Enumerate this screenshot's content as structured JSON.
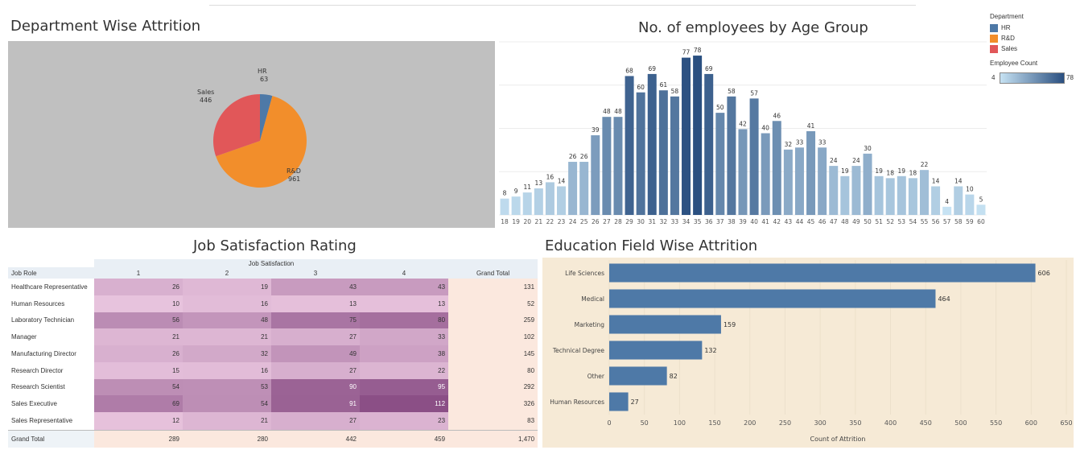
{
  "titles": {
    "pie": "Department Wise Attrition",
    "age": "No. of employees by Age Group",
    "job": "Job Satisfaction Rating",
    "edu": "Education Field Wise Attrition"
  },
  "legend": {
    "department_title": "Department",
    "departments": [
      {
        "name": "HR",
        "color": "#4e79a7"
      },
      {
        "name": "R&D",
        "color": "#f28e2b"
      },
      {
        "name": "Sales",
        "color": "#e15759"
      }
    ],
    "count_title": "Employee Count",
    "count_min": "4",
    "count_max": "78"
  },
  "chart_data": [
    {
      "type": "pie",
      "title": "Department Wise Attrition",
      "slices": [
        {
          "label": "HR",
          "value": 63,
          "color": "#4e79a7"
        },
        {
          "label": "R&D",
          "value": 961,
          "color": "#f28e2b"
        },
        {
          "label": "Sales",
          "value": 446,
          "color": "#e15759"
        }
      ]
    },
    {
      "type": "bar",
      "title": "No. of employees by Age Group",
      "categories": [
        "18",
        "19",
        "20",
        "21",
        "22",
        "23",
        "24",
        "25",
        "26",
        "27",
        "28",
        "29",
        "30",
        "31",
        "32",
        "33",
        "34",
        "35",
        "36",
        "37",
        "38",
        "39",
        "40",
        "41",
        "42",
        "43",
        "44",
        "45",
        "46",
        "47",
        "48",
        "49",
        "50",
        "51",
        "52",
        "53",
        "54",
        "55",
        "56",
        "57",
        "58",
        "59",
        "60"
      ],
      "values": [
        8,
        9,
        11,
        13,
        16,
        14,
        26,
        26,
        39,
        48,
        48,
        68,
        60,
        69,
        61,
        58,
        77,
        78,
        69,
        50,
        58,
        42,
        57,
        40,
        46,
        32,
        33,
        41,
        33,
        24,
        19,
        24,
        30,
        19,
        18,
        19,
        18,
        22,
        14,
        4,
        14,
        10,
        5
      ],
      "ylim": [
        0,
        80
      ],
      "color_range": [
        "#c6e2f3",
        "#2a4f80"
      ],
      "grid": true
    },
    {
      "type": "table",
      "title": "Job Satisfaction Rating",
      "row_header": "Job Role",
      "column_group": "Job Satisfaction",
      "columns": [
        "1",
        "2",
        "3",
        "4"
      ],
      "total_label": "Grand Total",
      "rows": [
        {
          "role": "Healthcare Representative",
          "values": [
            26,
            19,
            43,
            43
          ],
          "total": "131"
        },
        {
          "role": "Human Resources",
          "values": [
            10,
            16,
            13,
            13
          ],
          "total": "52"
        },
        {
          "role": "Laboratory Technician",
          "values": [
            56,
            48,
            75,
            80
          ],
          "total": "259"
        },
        {
          "role": "Manager",
          "values": [
            21,
            21,
            27,
            33
          ],
          "total": "102"
        },
        {
          "role": "Manufacturing Director",
          "values": [
            26,
            32,
            49,
            38
          ],
          "total": "145"
        },
        {
          "role": "Research Director",
          "values": [
            15,
            16,
            27,
            22
          ],
          "total": "80"
        },
        {
          "role": "Research Scientist",
          "values": [
            54,
            53,
            90,
            95
          ],
          "total": "292"
        },
        {
          "role": "Sales Executive",
          "values": [
            69,
            54,
            91,
            112
          ],
          "total": "326"
        },
        {
          "role": "Sales Representative",
          "values": [
            12,
            21,
            27,
            23
          ],
          "total": "83"
        }
      ],
      "grand_total_row": {
        "role": "Grand Total",
        "values": [
          "289",
          "280",
          "442",
          "459"
        ],
        "total": "1,470"
      }
    },
    {
      "type": "bar",
      "orientation": "horizontal",
      "title": "Education Field Wise Attrition",
      "categories": [
        "Life Sciences",
        "Medical",
        "Marketing",
        "Technical Degree",
        "Other",
        "Human Resources"
      ],
      "values": [
        606,
        464,
        159,
        132,
        82,
        27
      ],
      "xlabel": "Count of Attrition",
      "xlim": [
        0,
        650
      ],
      "xticks": [
        0,
        50,
        100,
        150,
        200,
        250,
        300,
        350,
        400,
        450,
        500,
        550,
        600,
        650
      ],
      "color": "#4e79a7",
      "grid": true
    }
  ]
}
